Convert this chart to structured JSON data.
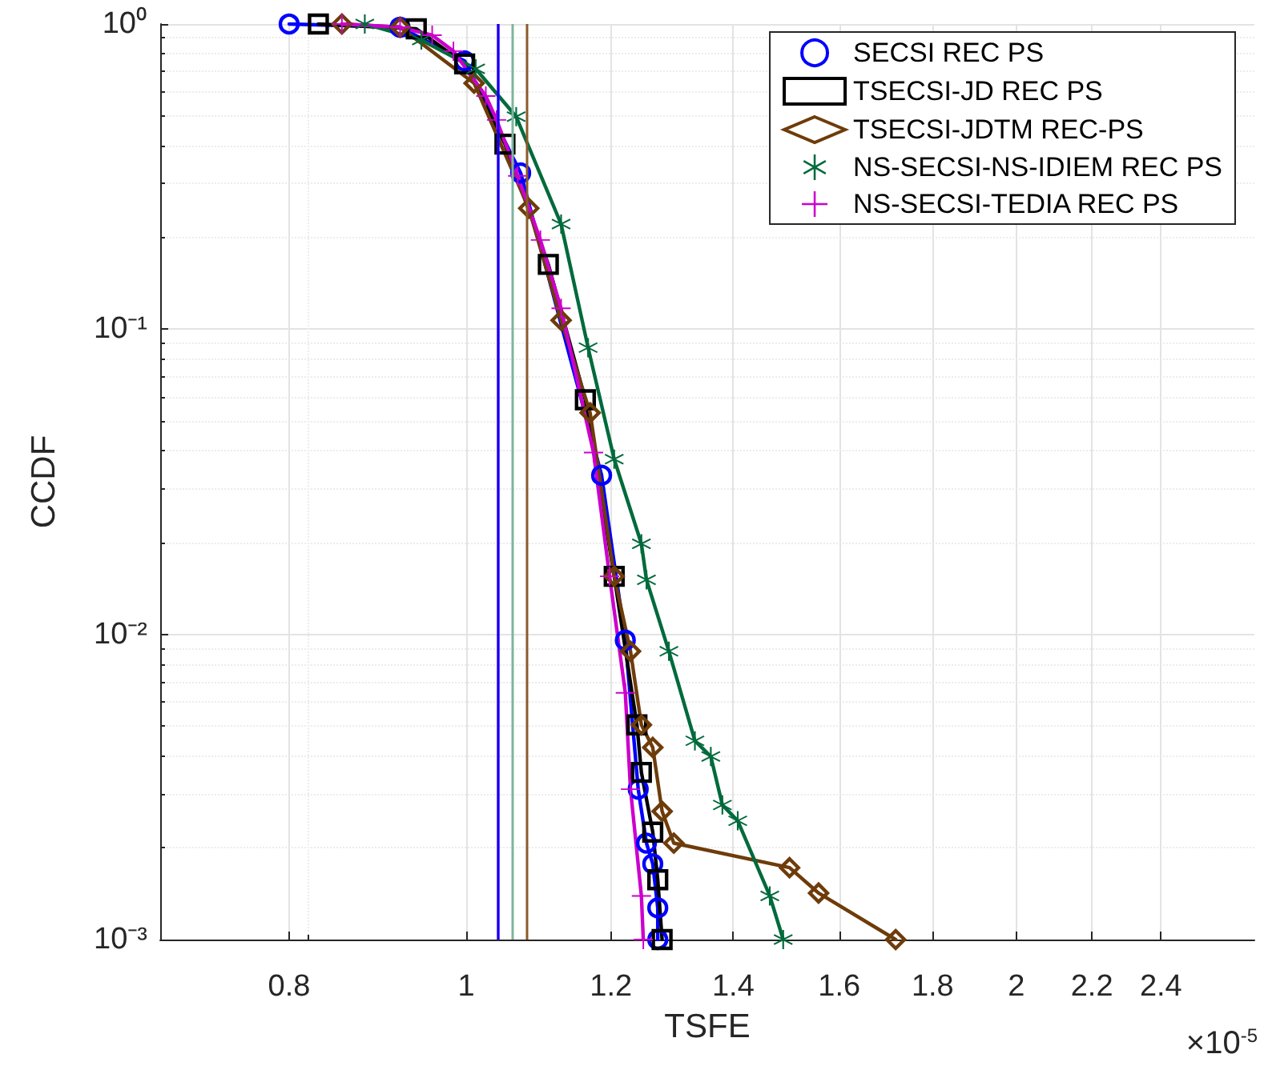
{
  "chart_data": {
    "type": "line",
    "xlabel": "TSFE",
    "ylabel": "CCDF",
    "log": "xy",
    "grid": true,
    "legend": "top right",
    "line_style": "solid",
    "xlim": [
      0.68,
      2.7
    ],
    "xticks": [
      0.8,
      1,
      1.2,
      1.4,
      1.6,
      1.8,
      2,
      2.2,
      2.4
    ],
    "ylim": [
      0.001,
      1
    ],
    "yticks": [
      {
        "value": 0.001,
        "label": "10⁻³"
      },
      {
        "value": 0.01,
        "label": "10⁻²"
      },
      {
        "value": 0.1,
        "label": "10⁻¹"
      },
      {
        "value": 1,
        "label": "10⁰"
      }
    ],
    "annotations": [
      "×10$^{-5}$"
    ],
    "series": [
      {
        "name": "SECSI REC PS",
        "color": "#0000ff",
        "marker": "circle",
        "x": [
          0.8,
          0.92,
          0.998,
          1.071,
          1.186,
          1.222,
          1.242,
          1.255,
          1.265,
          1.273,
          1.273
        ],
        "values": [
          1,
          0.976,
          0.757,
          0.325,
          0.0332,
          0.00957,
          0.00311,
          0.00207,
          0.00177,
          0.00127,
          0.001
        ]
      },
      {
        "name": "TSECSI-JD REC PS",
        "color": "#000000",
        "marker": "square",
        "x": [
          0.83,
          0.939,
          0.998,
          1.05,
          1.109,
          1.162,
          1.205,
          1.24,
          1.247,
          1.265,
          1.273,
          1.28
        ],
        "values": [
          1,
          0.964,
          0.74,
          0.404,
          0.163,
          0.0587,
          0.0155,
          0.00505,
          0.00353,
          0.00225,
          0.00157,
          0.001
        ]
      },
      {
        "name": "TSECSI-JDTM REC-PS",
        "color": "#6e3c0a",
        "marker": "diamond",
        "x": [
          0.855,
          0.92,
          1.01,
          1.082,
          1.127,
          1.169,
          1.205,
          1.23,
          1.247,
          1.265,
          1.28,
          1.299,
          1.503,
          1.559,
          1.718
        ],
        "values": [
          1,
          0.976,
          0.64,
          0.249,
          0.107,
          0.0532,
          0.0155,
          0.0088,
          0.00505,
          0.00426,
          0.00263,
          0.00207,
          0.00172,
          0.00142,
          0.001
        ]
      },
      {
        "name": "NS-SECSI-NS-IDIEM REC PS",
        "color": "#006a3c",
        "marker": "star",
        "x": [
          0.88,
          0.945,
          1.012,
          1.065,
          1.127,
          1.166,
          1.205,
          1.247,
          1.255,
          1.291,
          1.334,
          1.361,
          1.381,
          1.408,
          1.466,
          1.491
        ],
        "values": [
          1,
          0.886,
          0.713,
          0.497,
          0.221,
          0.087,
          0.0375,
          0.0198,
          0.0151,
          0.0088,
          0.00448,
          0.00398,
          0.00276,
          0.00245,
          0.00139,
          0.001
        ]
      },
      {
        "name": "NS-SECSI-TEDIA REC PS",
        "color": "#cc00cc",
        "marker": "cross",
        "x": [
          0.855,
          0.92,
          0.958,
          0.984,
          1.025,
          1.039,
          1.067,
          1.098,
          1.127,
          1.174,
          1.198,
          1.222,
          1.23,
          1.247,
          1.25
        ],
        "values": [
          1,
          0.976,
          0.919,
          0.815,
          0.581,
          0.485,
          0.318,
          0.196,
          0.117,
          0.0394,
          0.0155,
          0.00643,
          0.00311,
          0.00139,
          0.001
        ]
      }
    ],
    "ref_lines": [
      {
        "axis": "x",
        "value": 1.039,
        "color": "#cc00cc"
      },
      {
        "axis": "x",
        "value": 1.042,
        "color": "#0000ff"
      },
      {
        "axis": "x",
        "value": 1.065,
        "color": "#7fb49d"
      },
      {
        "axis": "x",
        "value": 1.08,
        "color": "#8b5a2b"
      }
    ]
  }
}
